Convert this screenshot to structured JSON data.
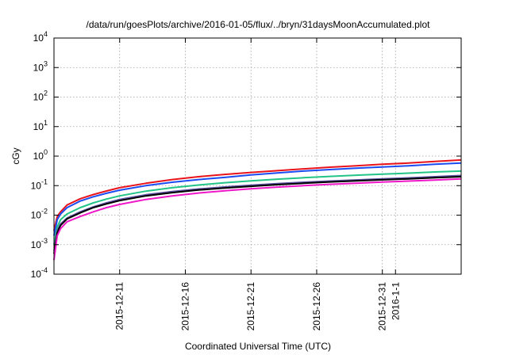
{
  "chart_data": {
    "type": "line",
    "title": "/data/run/goesPlots/archive/2016-01-05/flux/../bryn/31daysMoonAccumulated.plot",
    "xlabel": "Coordinated Universal Time (UTC)",
    "ylabel": "cGy",
    "yscale": "log",
    "ylim": [
      0.0001,
      10000
    ],
    "yticks": [
      {
        "value": 0.0001,
        "base": "10",
        "exp": "-4"
      },
      {
        "value": 0.001,
        "base": "10",
        "exp": "-3"
      },
      {
        "value": 0.01,
        "base": "10",
        "exp": "-2"
      },
      {
        "value": 0.1,
        "base": "10",
        "exp": "-1"
      },
      {
        "value": 1,
        "base": "10",
        "exp": "0"
      },
      {
        "value": 10,
        "base": "10",
        "exp": "1"
      },
      {
        "value": 100,
        "base": "10",
        "exp": "2"
      },
      {
        "value": 1000,
        "base": "10",
        "exp": "3"
      },
      {
        "value": 10000,
        "base": "10",
        "exp": "4"
      }
    ],
    "xlim": [
      "2015-12-06",
      "2016-01-06"
    ],
    "xticks": [
      {
        "date": "2015-12-11",
        "label": "2015-12-11"
      },
      {
        "date": "2015-12-16",
        "label": "2015-12-16"
      },
      {
        "date": "2015-12-21",
        "label": "2015-12-21"
      },
      {
        "date": "2015-12-26",
        "label": "2015-12-26"
      },
      {
        "date": "2015-12-31",
        "label": "2015-12-31"
      },
      {
        "date": "2016-01-01",
        "label": "2016-1-1"
      }
    ],
    "grid": true,
    "legend": "none",
    "x": [
      "2015-12-06",
      "2015-12-06T06:00",
      "2015-12-06T12:00",
      "2015-12-07",
      "2015-12-08",
      "2015-12-09",
      "2015-12-10",
      "2015-12-11",
      "2015-12-13",
      "2015-12-15",
      "2015-12-17",
      "2015-12-19",
      "2015-12-21",
      "2015-12-23",
      "2015-12-25",
      "2015-12-27",
      "2015-12-29",
      "2015-12-31",
      "2016-01-02",
      "2016-01-04",
      "2016-01-06"
    ],
    "series": [
      {
        "color": "#e8131b",
        "values": [
          0.003,
          0.009,
          0.013,
          0.022,
          0.036,
          0.05,
          0.066,
          0.085,
          0.12,
          0.16,
          0.2,
          0.24,
          0.28,
          0.32,
          0.37,
          0.42,
          0.47,
          0.53,
          0.58,
          0.66,
          0.74
        ]
      },
      {
        "color": "#1b4cf2",
        "values": [
          0.002,
          0.007,
          0.011,
          0.018,
          0.03,
          0.042,
          0.055,
          0.07,
          0.1,
          0.13,
          0.16,
          0.19,
          0.23,
          0.27,
          0.31,
          0.35,
          0.39,
          0.43,
          0.47,
          0.53,
          0.58
        ]
      },
      {
        "color": "#22c488",
        "values": [
          0.001,
          0.004,
          0.007,
          0.011,
          0.018,
          0.026,
          0.035,
          0.045,
          0.065,
          0.085,
          0.105,
          0.125,
          0.145,
          0.165,
          0.185,
          0.205,
          0.225,
          0.245,
          0.265,
          0.29,
          0.31
        ]
      },
      {
        "color": "#5b4fa0",
        "values": [
          0.0006,
          0.003,
          0.005,
          0.008,
          0.013,
          0.019,
          0.026,
          0.034,
          0.049,
          0.063,
          0.077,
          0.09,
          0.103,
          0.116,
          0.13,
          0.143,
          0.156,
          0.17,
          0.183,
          0.2,
          0.22
        ]
      },
      {
        "color": "#000000",
        "values": [
          0.0005,
          0.0025,
          0.0045,
          0.0075,
          0.012,
          0.018,
          0.024,
          0.031,
          0.045,
          0.058,
          0.071,
          0.083,
          0.095,
          0.108,
          0.12,
          0.133,
          0.145,
          0.158,
          0.17,
          0.185,
          0.2
        ]
      },
      {
        "color": "#ef17c8",
        "values": [
          0.0003,
          0.002,
          0.0035,
          0.006,
          0.009,
          0.013,
          0.018,
          0.023,
          0.034,
          0.045,
          0.056,
          0.067,
          0.078,
          0.089,
          0.1,
          0.111,
          0.121,
          0.132,
          0.143,
          0.155,
          0.17
        ]
      }
    ]
  }
}
